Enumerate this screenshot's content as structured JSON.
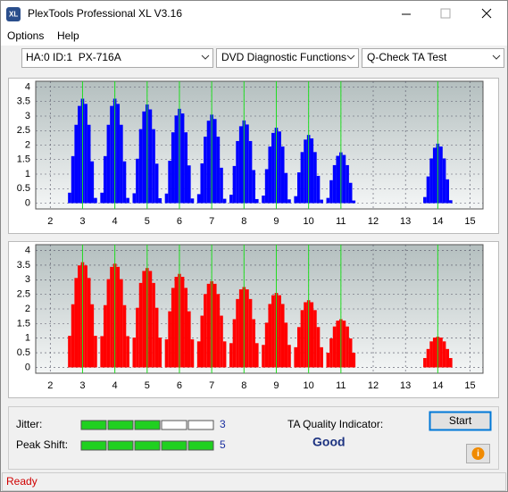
{
  "window": {
    "title": "PlexTools Professional XL V3.16"
  },
  "menu": [
    "Options",
    "Help"
  ],
  "toolbar": {
    "drive": "HA:0 ID:1  PX-716A",
    "function": "DVD Diagnostic Functions",
    "test": "Q-Check TA Test"
  },
  "chart_data": [
    {
      "type": "bar",
      "color": "#0000ff",
      "grid": true,
      "xlim": [
        1.55,
        15.4
      ],
      "ylim": [
        -0.2,
        4.2
      ],
      "xticks": [
        2,
        3,
        4,
        5,
        6,
        7,
        8,
        9,
        10,
        11,
        12,
        13,
        14,
        15
      ],
      "yticks": [
        0,
        0.5,
        1,
        1.5,
        2,
        2.5,
        3,
        3.5,
        4
      ],
      "markers": [
        3,
        4,
        5,
        6,
        7,
        8,
        9,
        10,
        11,
        14
      ],
      "marker_color": "#22dd22",
      "x": [
        2.6,
        2.7,
        2.8,
        2.9,
        3,
        3.1,
        3.2,
        3.3,
        3.4,
        3.6,
        3.7,
        3.8,
        3.9,
        4,
        4.1,
        4.2,
        4.3,
        4.4,
        4.6,
        4.7,
        4.8,
        4.9,
        5,
        5.1,
        5.2,
        5.3,
        5.4,
        5.6,
        5.7,
        5.8,
        5.9,
        6,
        6.1,
        6.2,
        6.3,
        6.4,
        6.6,
        6.7,
        6.8,
        6.9,
        7,
        7.1,
        7.2,
        7.3,
        7.4,
        7.6,
        7.7,
        7.8,
        7.9,
        8,
        8.1,
        8.2,
        8.3,
        8.4,
        8.6,
        8.7,
        8.8,
        8.9,
        9,
        9.1,
        9.2,
        9.3,
        9.4,
        9.6,
        9.7,
        9.8,
        9.9,
        10,
        10.1,
        10.2,
        10.3,
        10.4,
        10.6,
        10.7,
        10.8,
        10.9,
        11,
        11.1,
        11.2,
        11.3,
        11.4,
        13.6,
        13.7,
        13.8,
        13.9,
        14,
        14.1,
        14.2,
        14.3,
        14.4
      ],
      "values": [
        0.36,
        1.62,
        2.7,
        3.35,
        3.6,
        3.42,
        2.7,
        1.44,
        0.18,
        0.36,
        1.62,
        2.7,
        3.35,
        3.6,
        3.42,
        2.7,
        1.44,
        0.18,
        0.34,
        1.53,
        2.55,
        3.16,
        3.4,
        3.23,
        2.55,
        1.36,
        0.17,
        0.33,
        1.46,
        2.44,
        3.02,
        3.25,
        3.09,
        2.44,
        1.3,
        0.16,
        0.31,
        1.37,
        2.29,
        2.84,
        3.05,
        2.9,
        2.29,
        1.22,
        0.15,
        0.29,
        1.28,
        2.14,
        2.65,
        2.85,
        2.71,
        2.14,
        1.14,
        0.14,
        0.26,
        1.17,
        1.95,
        2.42,
        2.6,
        2.47,
        1.95,
        1.04,
        0.13,
        0.24,
        1.06,
        1.76,
        2.19,
        2.35,
        2.23,
        1.76,
        0.94,
        0.12,
        0.18,
        0.79,
        1.31,
        1.63,
        1.75,
        1.66,
        1.31,
        0.7,
        0.09,
        0.21,
        0.92,
        1.54,
        1.91,
        2.05,
        1.95,
        1.54,
        0.82,
        0.1
      ]
    },
    {
      "type": "bar",
      "color": "#ff0000",
      "grid": true,
      "xlim": [
        1.55,
        15.4
      ],
      "ylim": [
        -0.2,
        4.2
      ],
      "xticks": [
        2,
        3,
        4,
        5,
        6,
        7,
        8,
        9,
        10,
        11,
        12,
        13,
        14,
        15
      ],
      "yticks": [
        0,
        0.5,
        1,
        1.5,
        2,
        2.5,
        3,
        3.5,
        4
      ],
      "markers": [
        3,
        4,
        5,
        6,
        7,
        8,
        9,
        10,
        11,
        14
      ],
      "marker_color": "#22dd22",
      "x": [
        2.6,
        2.7,
        2.8,
        2.9,
        3,
        3.1,
        3.2,
        3.3,
        3.4,
        3.6,
        3.7,
        3.8,
        3.9,
        4,
        4.1,
        4.2,
        4.3,
        4.4,
        4.6,
        4.7,
        4.8,
        4.9,
        5,
        5.1,
        5.2,
        5.3,
        5.4,
        5.6,
        5.7,
        5.8,
        5.9,
        6,
        6.1,
        6.2,
        6.3,
        6.4,
        6.6,
        6.7,
        6.8,
        6.9,
        7,
        7.1,
        7.2,
        7.3,
        7.4,
        7.6,
        7.7,
        7.8,
        7.9,
        8,
        8.1,
        8.2,
        8.3,
        8.4,
        8.6,
        8.7,
        8.8,
        8.9,
        9,
        9.1,
        9.2,
        9.3,
        9.4,
        9.6,
        9.7,
        9.8,
        9.9,
        10,
        10.1,
        10.2,
        10.3,
        10.4,
        10.6,
        10.7,
        10.8,
        10.9,
        11,
        11.1,
        11.2,
        11.3,
        11.4,
        13.6,
        13.7,
        13.8,
        13.9,
        14,
        14.1,
        14.2,
        14.3,
        14.4
      ],
      "values": [
        1.08,
        2.16,
        3.06,
        3.49,
        3.6,
        3.49,
        3.06,
        2.16,
        1.08,
        1.07,
        2.13,
        3.02,
        3.44,
        3.55,
        3.44,
        3.02,
        2.13,
        1.07,
        1.02,
        2.04,
        2.89,
        3.3,
        3.4,
        3.3,
        2.89,
        2.04,
        1.02,
        0.96,
        1.92,
        2.72,
        3.1,
        3.2,
        3.1,
        2.72,
        1.92,
        0.96,
        0.89,
        1.77,
        2.51,
        2.86,
        2.95,
        2.86,
        2.51,
        1.77,
        0.89,
        0.83,
        1.65,
        2.34,
        2.67,
        2.75,
        2.67,
        2.34,
        1.65,
        0.83,
        0.77,
        1.53,
        2.17,
        2.47,
        2.55,
        2.47,
        2.17,
        1.53,
        0.77,
        0.69,
        1.38,
        1.96,
        2.23,
        2.3,
        2.23,
        1.96,
        1.38,
        0.69,
        0.5,
        0.99,
        1.4,
        1.6,
        1.65,
        1.6,
        1.4,
        0.99,
        0.5,
        0.32,
        0.63,
        0.89,
        1.02,
        1.05,
        1.02,
        0.89,
        0.63,
        0.32
      ]
    }
  ],
  "results": {
    "jitter_label": "Jitter:",
    "jitter": 3,
    "peak_shift_label": "Peak Shift:",
    "peak_shift": 5,
    "ta_label": "TA Quality Indicator:",
    "ta_value": "Good",
    "start": "Start"
  },
  "status": "Ready"
}
